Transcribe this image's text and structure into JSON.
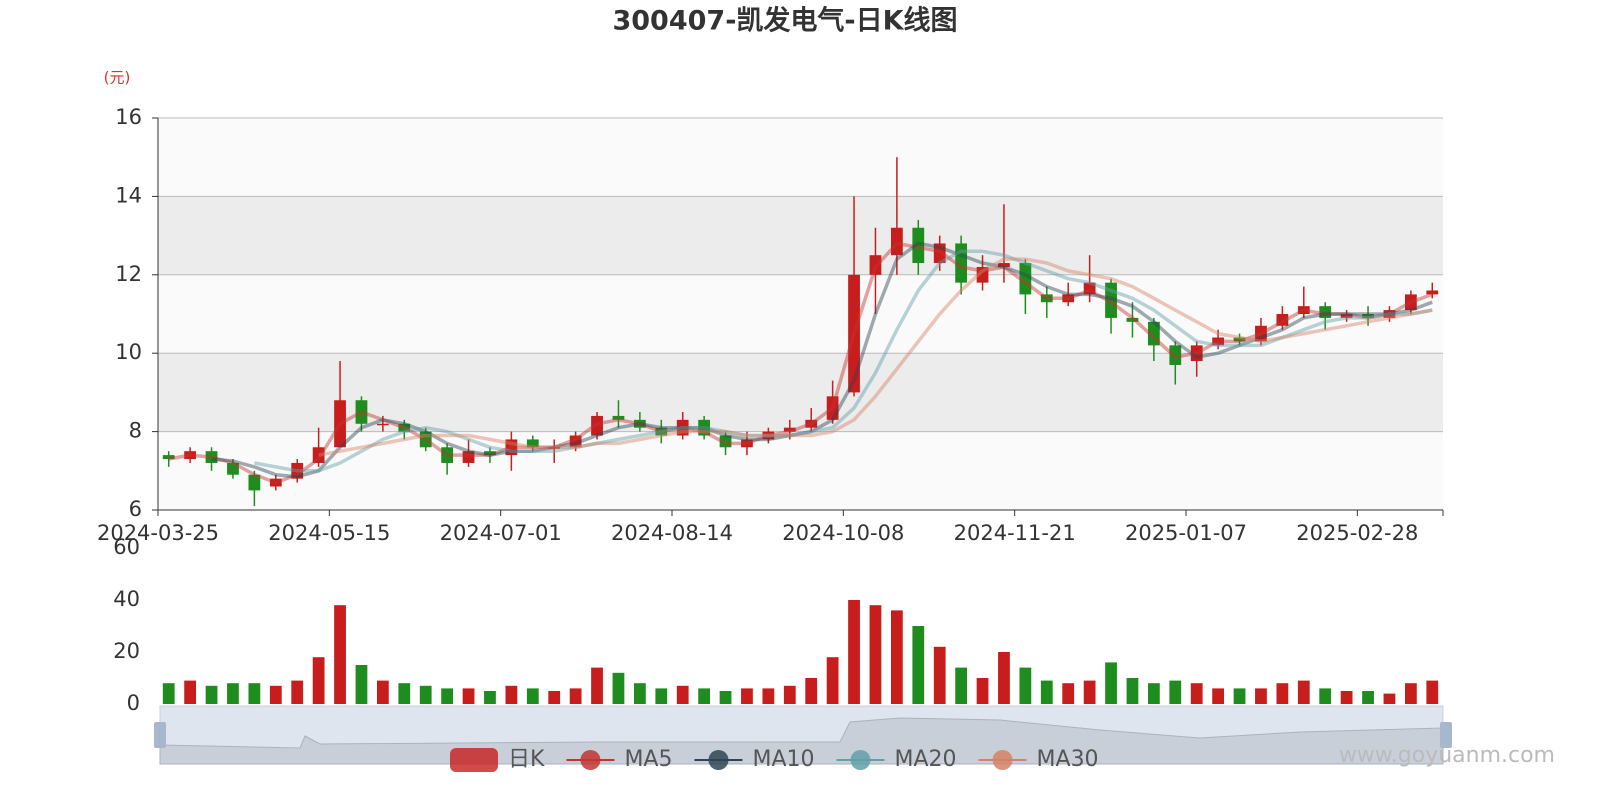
{
  "chart_data": {
    "type": "candlestick",
    "title": "300407-凯发电气-日K线图",
    "y_label": "(元)",
    "categories": [
      "2024-03-25",
      null,
      null,
      null,
      null,
      null,
      null,
      null,
      "2024-05-15",
      null,
      null,
      null,
      null,
      null,
      null,
      null,
      "2024-07-01",
      null,
      null,
      null,
      null,
      null,
      null,
      null,
      "2024-08-14",
      null,
      null,
      null,
      null,
      null,
      null,
      null,
      "2024-10-08",
      null,
      null,
      null,
      null,
      null,
      null,
      null,
      "2024-11-21",
      null,
      null,
      null,
      null,
      null,
      null,
      null,
      "2025-01-07",
      null,
      null,
      null,
      null,
      null,
      null,
      null,
      "2025-02-28",
      null,
      null,
      null
    ],
    "ylim": [
      6,
      16
    ],
    "yticks": [
      6,
      8,
      10,
      12,
      14,
      16
    ],
    "grid": true,
    "series": [
      {
        "name": "日K",
        "up_color": "#c81d1d",
        "down_color": "#1e8c1e",
        "values": [
          [
            7.4,
            7.3,
            7.1,
            7.5
          ],
          [
            7.3,
            7.5,
            7.2,
            7.6
          ],
          [
            7.5,
            7.2,
            7.0,
            7.6
          ],
          [
            7.2,
            6.9,
            6.8,
            7.3
          ],
          [
            6.9,
            6.5,
            6.1,
            7.0
          ],
          [
            6.6,
            6.8,
            6.5,
            6.9
          ],
          [
            6.8,
            7.2,
            6.7,
            7.3
          ],
          [
            7.2,
            7.6,
            7.1,
            8.1
          ],
          [
            7.6,
            8.8,
            7.6,
            9.8
          ],
          [
            8.8,
            8.2,
            8.0,
            8.9
          ],
          [
            8.2,
            8.2,
            8.0,
            8.4
          ],
          [
            8.2,
            8.0,
            7.8,
            8.3
          ],
          [
            8.0,
            7.6,
            7.5,
            8.1
          ],
          [
            7.6,
            7.2,
            6.9,
            7.7
          ],
          [
            7.2,
            7.5,
            7.1,
            7.8
          ],
          [
            7.5,
            7.4,
            7.2,
            7.6
          ],
          [
            7.4,
            7.8,
            7.0,
            8.0
          ],
          [
            7.8,
            7.6,
            7.5,
            7.9
          ],
          [
            7.6,
            7.6,
            7.2,
            7.8
          ],
          [
            7.6,
            7.9,
            7.5,
            8.0
          ],
          [
            7.9,
            8.4,
            7.8,
            8.5
          ],
          [
            8.4,
            8.3,
            8.1,
            8.8
          ],
          [
            8.3,
            8.1,
            8.0,
            8.5
          ],
          [
            8.1,
            7.9,
            7.7,
            8.3
          ],
          [
            7.9,
            8.3,
            7.8,
            8.5
          ],
          [
            8.3,
            7.9,
            7.8,
            8.4
          ],
          [
            7.9,
            7.6,
            7.4,
            8.0
          ],
          [
            7.6,
            7.8,
            7.4,
            8.0
          ],
          [
            7.8,
            8.0,
            7.7,
            8.1
          ],
          [
            8.0,
            8.1,
            7.8,
            8.3
          ],
          [
            8.1,
            8.3,
            8.0,
            8.6
          ],
          [
            8.3,
            8.9,
            8.2,
            9.3
          ],
          [
            9.0,
            12.0,
            8.9,
            14.0
          ],
          [
            12.0,
            12.5,
            11.0,
            13.2
          ],
          [
            12.5,
            13.2,
            12.0,
            15.0
          ],
          [
            13.2,
            12.3,
            12.0,
            13.4
          ],
          [
            12.3,
            12.8,
            12.1,
            13.0
          ],
          [
            12.8,
            11.8,
            11.5,
            13.0
          ],
          [
            11.8,
            12.2,
            11.6,
            12.5
          ],
          [
            12.2,
            12.3,
            11.8,
            13.8
          ],
          [
            12.3,
            11.5,
            11.0,
            12.4
          ],
          [
            11.5,
            11.3,
            10.9,
            11.7
          ],
          [
            11.3,
            11.5,
            11.2,
            11.8
          ],
          [
            11.5,
            11.8,
            11.3,
            12.5
          ],
          [
            11.8,
            10.9,
            10.5,
            11.9
          ],
          [
            10.9,
            10.8,
            10.4,
            11.3
          ],
          [
            10.8,
            10.2,
            9.8,
            10.9
          ],
          [
            10.2,
            9.7,
            9.2,
            10.3
          ],
          [
            9.8,
            10.2,
            9.4,
            10.3
          ],
          [
            10.2,
            10.4,
            10.1,
            10.6
          ],
          [
            10.4,
            10.3,
            10.2,
            10.5
          ],
          [
            10.3,
            10.7,
            10.2,
            10.9
          ],
          [
            10.7,
            11.0,
            10.6,
            11.2
          ],
          [
            11.0,
            11.2,
            10.9,
            11.7
          ],
          [
            11.2,
            10.9,
            10.6,
            11.3
          ],
          [
            10.9,
            11.0,
            10.8,
            11.1
          ],
          [
            11.0,
            10.9,
            10.7,
            11.2
          ],
          [
            10.9,
            11.1,
            10.8,
            11.2
          ],
          [
            11.1,
            11.5,
            11.0,
            11.6
          ],
          [
            11.5,
            11.6,
            11.4,
            11.8
          ]
        ]
      },
      {
        "name": "MA5",
        "color": "#c23531",
        "values": [
          7.3,
          7.4,
          7.35,
          7.2,
          6.9,
          6.7,
          6.9,
          7.3,
          8.2,
          8.5,
          8.3,
          8.1,
          7.8,
          7.4,
          7.4,
          7.4,
          7.6,
          7.6,
          7.6,
          7.8,
          8.2,
          8.3,
          8.2,
          8.0,
          8.1,
          8.0,
          7.7,
          7.7,
          7.9,
          8.0,
          8.2,
          8.6,
          10.5,
          12.2,
          12.8,
          12.7,
          12.6,
          12.2,
          12.1,
          12.2,
          11.8,
          11.4,
          11.4,
          11.6,
          11.3,
          10.9,
          10.4,
          9.9,
          10.0,
          10.3,
          10.3,
          10.5,
          10.8,
          11.1,
          11.0,
          11.0,
          10.9,
          11.0,
          11.3,
          11.5
        ]
      },
      {
        "name": "MA10",
        "color": "#2f4554",
        "values": [
          null,
          null,
          7.3,
          7.25,
          7.1,
          6.9,
          6.85,
          7.0,
          7.6,
          8.1,
          8.3,
          8.2,
          8.0,
          7.7,
          7.5,
          7.4,
          7.5,
          7.5,
          7.6,
          7.7,
          7.9,
          8.1,
          8.2,
          8.1,
          8.1,
          8.1,
          7.9,
          7.8,
          7.8,
          7.9,
          8.0,
          8.3,
          9.3,
          11.0,
          12.4,
          12.8,
          12.7,
          12.5,
          12.3,
          12.2,
          12.0,
          11.7,
          11.5,
          11.5,
          11.4,
          11.2,
          10.8,
          10.3,
          9.9,
          10.0,
          10.2,
          10.4,
          10.6,
          10.9,
          11.0,
          11.0,
          11.0,
          11.0,
          11.1,
          11.3
        ]
      },
      {
        "name": "MA20",
        "color": "#61a0a8",
        "values": [
          null,
          null,
          null,
          null,
          7.2,
          7.1,
          7.0,
          7.0,
          7.2,
          7.5,
          7.8,
          8.0,
          8.1,
          8.0,
          7.8,
          7.6,
          7.5,
          7.5,
          7.5,
          7.6,
          7.7,
          7.8,
          7.9,
          8.0,
          8.1,
          8.1,
          8.0,
          7.9,
          7.9,
          7.9,
          8.0,
          8.1,
          8.6,
          9.5,
          10.6,
          11.6,
          12.3,
          12.6,
          12.6,
          12.5,
          12.3,
          12.1,
          11.9,
          11.8,
          11.6,
          11.4,
          11.1,
          10.7,
          10.3,
          10.2,
          10.2,
          10.2,
          10.4,
          10.6,
          10.8,
          10.9,
          10.9,
          11.0,
          11.0,
          11.1
        ]
      },
      {
        "name": "MA30",
        "color": "#d48265",
        "values": [
          null,
          null,
          null,
          null,
          null,
          null,
          null,
          7.4,
          7.5,
          7.6,
          7.7,
          7.8,
          7.9,
          7.9,
          7.9,
          7.8,
          7.7,
          7.6,
          7.6,
          7.6,
          7.7,
          7.7,
          7.8,
          7.9,
          8.0,
          8.0,
          8.0,
          7.9,
          7.9,
          7.9,
          7.9,
          8.0,
          8.3,
          8.9,
          9.6,
          10.3,
          11.0,
          11.6,
          12.1,
          12.4,
          12.4,
          12.3,
          12.1,
          12.0,
          11.9,
          11.7,
          11.4,
          11.1,
          10.8,
          10.5,
          10.4,
          10.3,
          10.4,
          10.5,
          10.6,
          10.7,
          10.8,
          10.9,
          11.0,
          11.1
        ]
      }
    ],
    "volume": {
      "values": [
        8,
        9,
        7,
        8,
        8,
        7,
        9,
        18,
        38,
        15,
        9,
        8,
        7,
        6,
        6,
        5,
        7,
        6,
        5,
        6,
        14,
        12,
        8,
        6,
        7,
        6,
        5,
        6,
        6,
        7,
        10,
        18,
        40,
        38,
        36,
        30,
        22,
        14,
        10,
        20,
        14,
        9,
        8,
        9,
        16,
        10,
        8,
        9,
        8,
        6,
        6,
        6,
        8,
        9,
        6,
        5,
        5,
        4,
        8,
        9
      ],
      "ylim": [
        0,
        60
      ],
      "yticks": [
        0,
        20,
        40,
        60
      ]
    }
  },
  "watermark": "www.goyuanm.com"
}
